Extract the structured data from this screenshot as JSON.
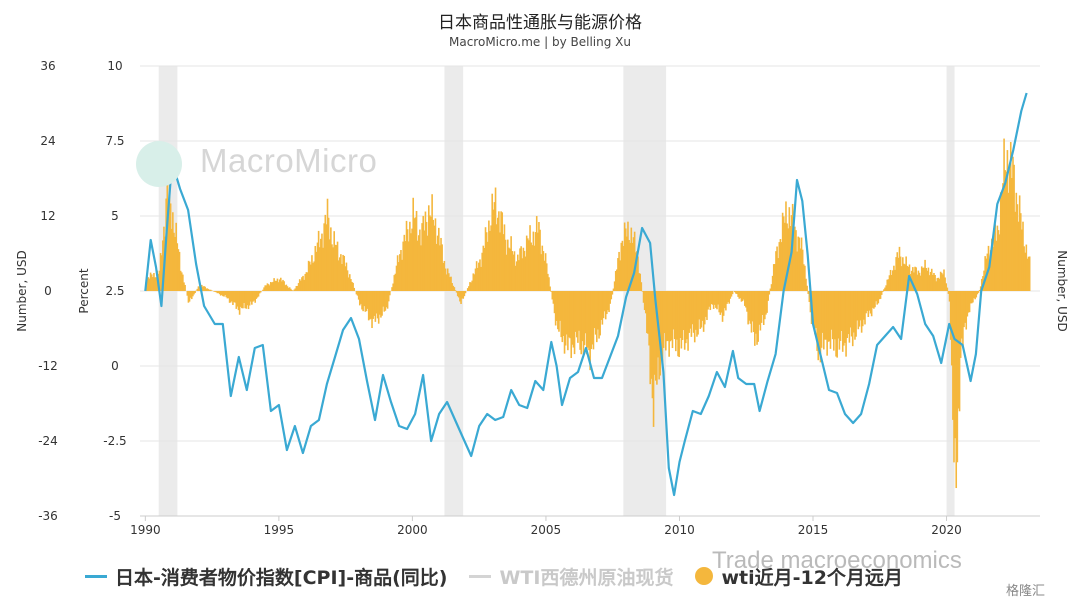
{
  "title": "日本商品性通胀与能源价格",
  "subtitle": "MacroMicro.me | by Belling Xu",
  "watermark": {
    "brand": "MacroMicro",
    "bottom": "Trade macroeconomics",
    "corner": "格隆汇"
  },
  "colors": {
    "cpi": "#3aa9d3",
    "wti": "#cfcfcf",
    "wti_yoy": "#f4b73d",
    "recession": "#ebebeb",
    "grid": "#e6e6e6"
  },
  "chart_data": {
    "type": "line",
    "x_ticks": [
      "1990",
      "1995",
      "2000",
      "2005",
      "2010",
      "2015",
      "2020"
    ],
    "axes": {
      "left_outer": {
        "label": "Number, USD",
        "ticks": [
          "36",
          "24",
          "12",
          "0",
          "-12",
          "-24",
          "-36"
        ],
        "range": [
          -36,
          36
        ]
      },
      "left_inner": {
        "label": "Percent",
        "ticks": [
          "10",
          "7.5",
          "5",
          "2.5",
          "0",
          "-2.5",
          "-5"
        ],
        "range": [
          -5,
          10
        ]
      },
      "right": {
        "label": "Number, USD"
      }
    },
    "x_range": [
      1989.8,
      2023.5
    ],
    "recessions": [
      [
        1990.5,
        1991.2
      ],
      [
        2001.2,
        2001.9
      ],
      [
        2007.9,
        2009.5
      ],
      [
        2020.0,
        2020.3
      ]
    ],
    "series": [
      {
        "name": "日本-消费者物价指数[CPI]-商品(同比)",
        "axis": "left_inner",
        "kind": "line",
        "points": [
          [
            1990.0,
            2.5
          ],
          [
            1990.2,
            4.2
          ],
          [
            1990.4,
            3.3
          ],
          [
            1990.6,
            2.0
          ],
          [
            1990.8,
            4.5
          ],
          [
            1991.0,
            6.8
          ],
          [
            1991.3,
            5.9
          ],
          [
            1991.6,
            5.2
          ],
          [
            1991.9,
            3.4
          ],
          [
            1992.2,
            2.0
          ],
          [
            1992.6,
            1.4
          ],
          [
            1992.9,
            1.4
          ],
          [
            1993.2,
            -1.0
          ],
          [
            1993.5,
            0.3
          ],
          [
            1993.8,
            -0.8
          ],
          [
            1994.1,
            0.6
          ],
          [
            1994.4,
            0.7
          ],
          [
            1994.7,
            -1.5
          ],
          [
            1995.0,
            -1.3
          ],
          [
            1995.3,
            -2.8
          ],
          [
            1995.6,
            -2.0
          ],
          [
            1995.9,
            -2.9
          ],
          [
            1996.2,
            -2.0
          ],
          [
            1996.5,
            -1.8
          ],
          [
            1996.8,
            -0.6
          ],
          [
            1997.1,
            0.3
          ],
          [
            1997.4,
            1.2
          ],
          [
            1997.7,
            1.6
          ],
          [
            1998.0,
            0.9
          ],
          [
            1998.3,
            -0.5
          ],
          [
            1998.6,
            -1.8
          ],
          [
            1998.9,
            -0.3
          ],
          [
            1999.2,
            -1.2
          ],
          [
            1999.5,
            -2.0
          ],
          [
            1999.8,
            -2.1
          ],
          [
            2000.1,
            -1.6
          ],
          [
            2000.4,
            -0.3
          ],
          [
            2000.7,
            -2.5
          ],
          [
            2001.0,
            -1.6
          ],
          [
            2001.3,
            -1.2
          ],
          [
            2001.6,
            -1.8
          ],
          [
            2001.9,
            -2.4
          ],
          [
            2002.2,
            -3.0
          ],
          [
            2002.5,
            -2.0
          ],
          [
            2002.8,
            -1.6
          ],
          [
            2003.1,
            -1.8
          ],
          [
            2003.4,
            -1.7
          ],
          [
            2003.7,
            -0.8
          ],
          [
            2004.0,
            -1.3
          ],
          [
            2004.3,
            -1.4
          ],
          [
            2004.6,
            -0.5
          ],
          [
            2004.9,
            -0.8
          ],
          [
            2005.2,
            0.8
          ],
          [
            2005.4,
            0.0
          ],
          [
            2005.6,
            -1.3
          ],
          [
            2005.9,
            -0.4
          ],
          [
            2006.2,
            -0.2
          ],
          [
            2006.5,
            0.6
          ],
          [
            2006.8,
            -0.4
          ],
          [
            2007.1,
            -0.4
          ],
          [
            2007.4,
            0.3
          ],
          [
            2007.7,
            1.0
          ],
          [
            2008.0,
            2.3
          ],
          [
            2008.3,
            3.1
          ],
          [
            2008.6,
            4.6
          ],
          [
            2008.9,
            4.1
          ],
          [
            2009.1,
            2.2
          ],
          [
            2009.4,
            -0.2
          ],
          [
            2009.6,
            -3.4
          ],
          [
            2009.8,
            -4.3
          ],
          [
            2010.0,
            -3.2
          ],
          [
            2010.2,
            -2.5
          ],
          [
            2010.5,
            -1.5
          ],
          [
            2010.8,
            -1.6
          ],
          [
            2011.1,
            -1.0
          ],
          [
            2011.4,
            -0.2
          ],
          [
            2011.7,
            -0.7
          ],
          [
            2012.0,
            0.5
          ],
          [
            2012.2,
            -0.4
          ],
          [
            2012.5,
            -0.6
          ],
          [
            2012.8,
            -0.6
          ],
          [
            2013.0,
            -1.5
          ],
          [
            2013.3,
            -0.5
          ],
          [
            2013.6,
            0.4
          ],
          [
            2013.9,
            2.5
          ],
          [
            2014.2,
            3.8
          ],
          [
            2014.4,
            6.2
          ],
          [
            2014.6,
            5.5
          ],
          [
            2014.8,
            3.7
          ],
          [
            2015.0,
            1.4
          ],
          [
            2015.3,
            0.3
          ],
          [
            2015.6,
            -0.8
          ],
          [
            2015.9,
            -0.9
          ],
          [
            2016.2,
            -1.6
          ],
          [
            2016.5,
            -1.9
          ],
          [
            2016.8,
            -1.6
          ],
          [
            2017.1,
            -0.6
          ],
          [
            2017.4,
            0.7
          ],
          [
            2017.7,
            1.0
          ],
          [
            2018.0,
            1.3
          ],
          [
            2018.3,
            0.9
          ],
          [
            2018.6,
            3.0
          ],
          [
            2018.9,
            2.4
          ],
          [
            2019.2,
            1.4
          ],
          [
            2019.5,
            1.0
          ],
          [
            2019.8,
            0.1
          ],
          [
            2020.1,
            1.4
          ],
          [
            2020.3,
            0.9
          ],
          [
            2020.6,
            0.7
          ],
          [
            2020.9,
            -0.5
          ],
          [
            2021.1,
            0.4
          ],
          [
            2021.3,
            2.5
          ],
          [
            2021.6,
            3.3
          ],
          [
            2021.9,
            5.4
          ],
          [
            2022.2,
            6.1
          ],
          [
            2022.5,
            7.2
          ],
          [
            2022.8,
            8.5
          ],
          [
            2023.0,
            9.1
          ]
        ]
      },
      {
        "name": "WTI西德州原油现货",
        "axis": "left_outer",
        "kind": "line",
        "points": []
      },
      {
        "name": "wti近月-12个月远月",
        "axis": "left_outer",
        "kind": "bar",
        "points": [
          [
            1990.0,
            2
          ],
          [
            1990.5,
            3
          ],
          [
            1990.8,
            16
          ],
          [
            1991.0,
            12
          ],
          [
            1991.3,
            4
          ],
          [
            1991.6,
            -2
          ],
          [
            1992.0,
            1
          ],
          [
            1992.5,
            0
          ],
          [
            1993.0,
            -1
          ],
          [
            1993.5,
            -3
          ],
          [
            1994.0,
            -2
          ],
          [
            1994.5,
            1
          ],
          [
            1995.0,
            2
          ],
          [
            1995.5,
            0
          ],
          [
            1996.0,
            3
          ],
          [
            1996.5,
            8
          ],
          [
            1996.8,
            12
          ],
          [
            1997.0,
            8
          ],
          [
            1997.5,
            4
          ],
          [
            1998.0,
            -2
          ],
          [
            1998.5,
            -5
          ],
          [
            1999.0,
            -3
          ],
          [
            1999.5,
            6
          ],
          [
            2000.0,
            12
          ],
          [
            2000.3,
            9
          ],
          [
            2000.6,
            13
          ],
          [
            2000.9,
            10
          ],
          [
            2001.2,
            4
          ],
          [
            2001.5,
            1
          ],
          [
            2001.8,
            -2
          ],
          [
            2002.2,
            2
          ],
          [
            2002.6,
            6
          ],
          [
            2002.9,
            12
          ],
          [
            2003.1,
            14
          ],
          [
            2003.5,
            8
          ],
          [
            2003.9,
            5
          ],
          [
            2004.3,
            8
          ],
          [
            2004.7,
            10
          ],
          [
            2005.0,
            4
          ],
          [
            2005.4,
            -6
          ],
          [
            2005.8,
            -9
          ],
          [
            2006.2,
            -8
          ],
          [
            2006.6,
            -10
          ],
          [
            2007.0,
            -6
          ],
          [
            2007.4,
            -2
          ],
          [
            2007.8,
            8
          ],
          [
            2008.1,
            10
          ],
          [
            2008.4,
            6
          ],
          [
            2008.7,
            -4
          ],
          [
            2009.0,
            -18
          ],
          [
            2009.3,
            -10
          ],
          [
            2009.6,
            -8
          ],
          [
            2010.0,
            -9
          ],
          [
            2010.4,
            -7
          ],
          [
            2010.8,
            -6
          ],
          [
            2011.2,
            -2
          ],
          [
            2011.6,
            -4
          ],
          [
            2012.0,
            0
          ],
          [
            2012.4,
            -2
          ],
          [
            2012.8,
            -8
          ],
          [
            2013.2,
            -4
          ],
          [
            2013.6,
            6
          ],
          [
            2014.0,
            13
          ],
          [
            2014.3,
            10
          ],
          [
            2014.6,
            6
          ],
          [
            2014.9,
            -4
          ],
          [
            2015.2,
            -10
          ],
          [
            2015.5,
            -8
          ],
          [
            2015.9,
            -9
          ],
          [
            2016.3,
            -8
          ],
          [
            2016.7,
            -6
          ],
          [
            2017.0,
            -4
          ],
          [
            2017.4,
            -2
          ],
          [
            2017.8,
            2
          ],
          [
            2018.2,
            6
          ],
          [
            2018.5,
            4
          ],
          [
            2018.9,
            3
          ],
          [
            2019.2,
            4
          ],
          [
            2019.6,
            2
          ],
          [
            2019.9,
            3
          ],
          [
            2020.1,
            -2
          ],
          [
            2020.3,
            -35
          ],
          [
            2020.5,
            -10
          ],
          [
            2020.8,
            -3
          ],
          [
            2021.2,
            0
          ],
          [
            2021.5,
            6
          ],
          [
            2021.9,
            10
          ],
          [
            2022.2,
            22
          ],
          [
            2022.5,
            18
          ],
          [
            2022.8,
            10
          ],
          [
            2023.1,
            4
          ]
        ]
      }
    ]
  }
}
